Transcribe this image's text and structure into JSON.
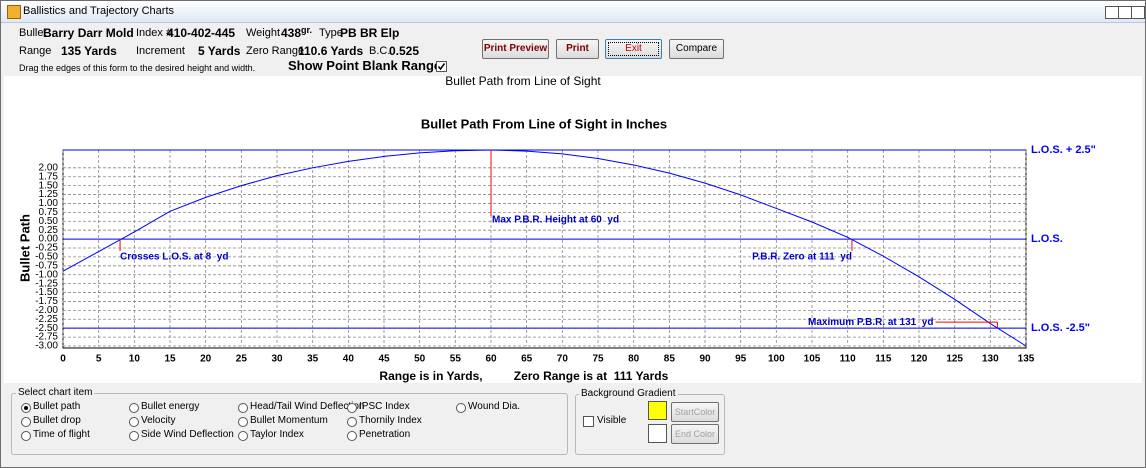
{
  "window": {
    "title": "Ballistics and Trajectory Charts"
  },
  "header": {
    "bullet_label": "Bullet",
    "bullet": "Barry Darr Mold",
    "index_label": "Index #",
    "index": "410-402-445",
    "weight_label": "Weight",
    "weight": "438",
    "weight_unit": "gr.",
    "type_label": "Type",
    "type": "PB BR Elp",
    "range_label": "Range",
    "range": "135 Yards",
    "increment_label": "Increment",
    "increment": "5 Yards",
    "zero_range_label": "Zero Range",
    "zero_range": "110.6 Yards",
    "bc_label": "B.C.",
    "bc": "0.525",
    "hint": "Drag the edges of this form to the desired height and width.",
    "show_pbr": "Show Point Blank Range",
    "show_pbr_checked": true
  },
  "buttons": [
    "Print Preview",
    "Print",
    "Exit",
    "Compare"
  ],
  "chart_data": {
    "type": "line",
    "caption": "Bullet Path from Line of Sight",
    "title": "Bullet Path From Line of Sight in Inches",
    "y_label": "Bullet Path",
    "x_label": "Range is in Yards,",
    "x_note": "Zero Range is at  111 Yards",
    "color": "#0000ff",
    "x": [
      0,
      5,
      10,
      15,
      20,
      25,
      30,
      35,
      40,
      45,
      50,
      55,
      60,
      65,
      70,
      75,
      80,
      85,
      90,
      95,
      100,
      105,
      110,
      115,
      120,
      125,
      130,
      135
    ],
    "values": [
      -0.9,
      -0.35,
      0.2,
      0.78,
      1.17,
      1.5,
      1.78,
      2.0,
      2.18,
      2.32,
      2.42,
      2.48,
      2.5,
      2.47,
      2.39,
      2.26,
      2.08,
      1.85,
      1.57,
      1.24,
      0.86,
      0.48,
      0.05,
      -0.48,
      -1.06,
      -1.69,
      -2.37,
      -3.0
    ],
    "xlim": [
      0,
      135
    ],
    "ylim": [
      -3,
      2.5
    ],
    "xticks": [
      0,
      5,
      10,
      15,
      20,
      25,
      30,
      35,
      40,
      45,
      50,
      55,
      60,
      65,
      70,
      75,
      80,
      85,
      90,
      95,
      100,
      105,
      110,
      115,
      120,
      125,
      130,
      135
    ],
    "yticks": [
      {
        "value": 2,
        "label": "2.00"
      },
      {
        "value": 1.75,
        "label": "1.75"
      },
      {
        "value": 1.5,
        "label": "1.50"
      },
      {
        "value": 1.25,
        "label": "1.25"
      },
      {
        "value": 1,
        "label": "1.00"
      },
      {
        "value": 0.75,
        "label": "0.75"
      },
      {
        "value": 0.5,
        "label": "0.50"
      },
      {
        "value": 0.25,
        "label": "0.25"
      },
      {
        "value": 0,
        "label": "0.00"
      },
      {
        "value": -0.25,
        "label": "-0.25"
      },
      {
        "value": -0.5,
        "label": "-0.50"
      },
      {
        "value": -0.75,
        "label": "-0.75"
      },
      {
        "value": -1,
        "label": "-1.00"
      },
      {
        "value": -1.25,
        "label": "-1.25"
      },
      {
        "value": -1.5,
        "label": "-1.50"
      },
      {
        "value": -1.75,
        "label": "-1.75"
      },
      {
        "value": -2,
        "label": "-2.00"
      },
      {
        "value": -2.25,
        "label": "-2.25"
      },
      {
        "value": -2.5,
        "label": "-2.50"
      },
      {
        "value": -2.75,
        "label": "-2.75"
      },
      {
        "value": -3,
        "label": "-3.00"
      }
    ],
    "grid": true,
    "reference_lines": [
      {
        "value": 2.5,
        "label": "L.O.S. + 2.5\""
      },
      {
        "value": 0,
        "label": "L.O.S."
      },
      {
        "value": -2.5,
        "label": "L.O.S. -2.5\""
      }
    ],
    "annotations": [
      {
        "x": 60,
        "y": 2.5,
        "label": "Max P.B.R. Height at 60  yd"
      },
      {
        "x": 8,
        "y": 0,
        "label": "Crosses L.O.S. at 8  yd"
      },
      {
        "x": 110.6,
        "y": 0,
        "label": "P.B.R. Zero at 111  yd"
      },
      {
        "x": 131,
        "y": -2.5,
        "label": "Maximum P.B.R. at 131  yd"
      }
    ]
  },
  "chart_items": {
    "title": "Select chart item",
    "options": [
      "Bullet path",
      "Bullet drop",
      "Time of flight",
      "Bullet energy",
      "Velocity",
      "Side Wind Deflection",
      "Head/Tail Wind Deflection",
      "Bullet Momentum",
      "Taylor Index",
      "IPSC Index",
      "Thornily Index",
      "Penetration",
      "Wound Dia."
    ],
    "selected": 0
  },
  "background": {
    "title": "Background Gradient",
    "visible_label": "Visible",
    "visible_checked": false,
    "start": "StartColor",
    "end": "End Color",
    "start_swatch": "#ffff00",
    "end_swatch": "#ffffff"
  }
}
